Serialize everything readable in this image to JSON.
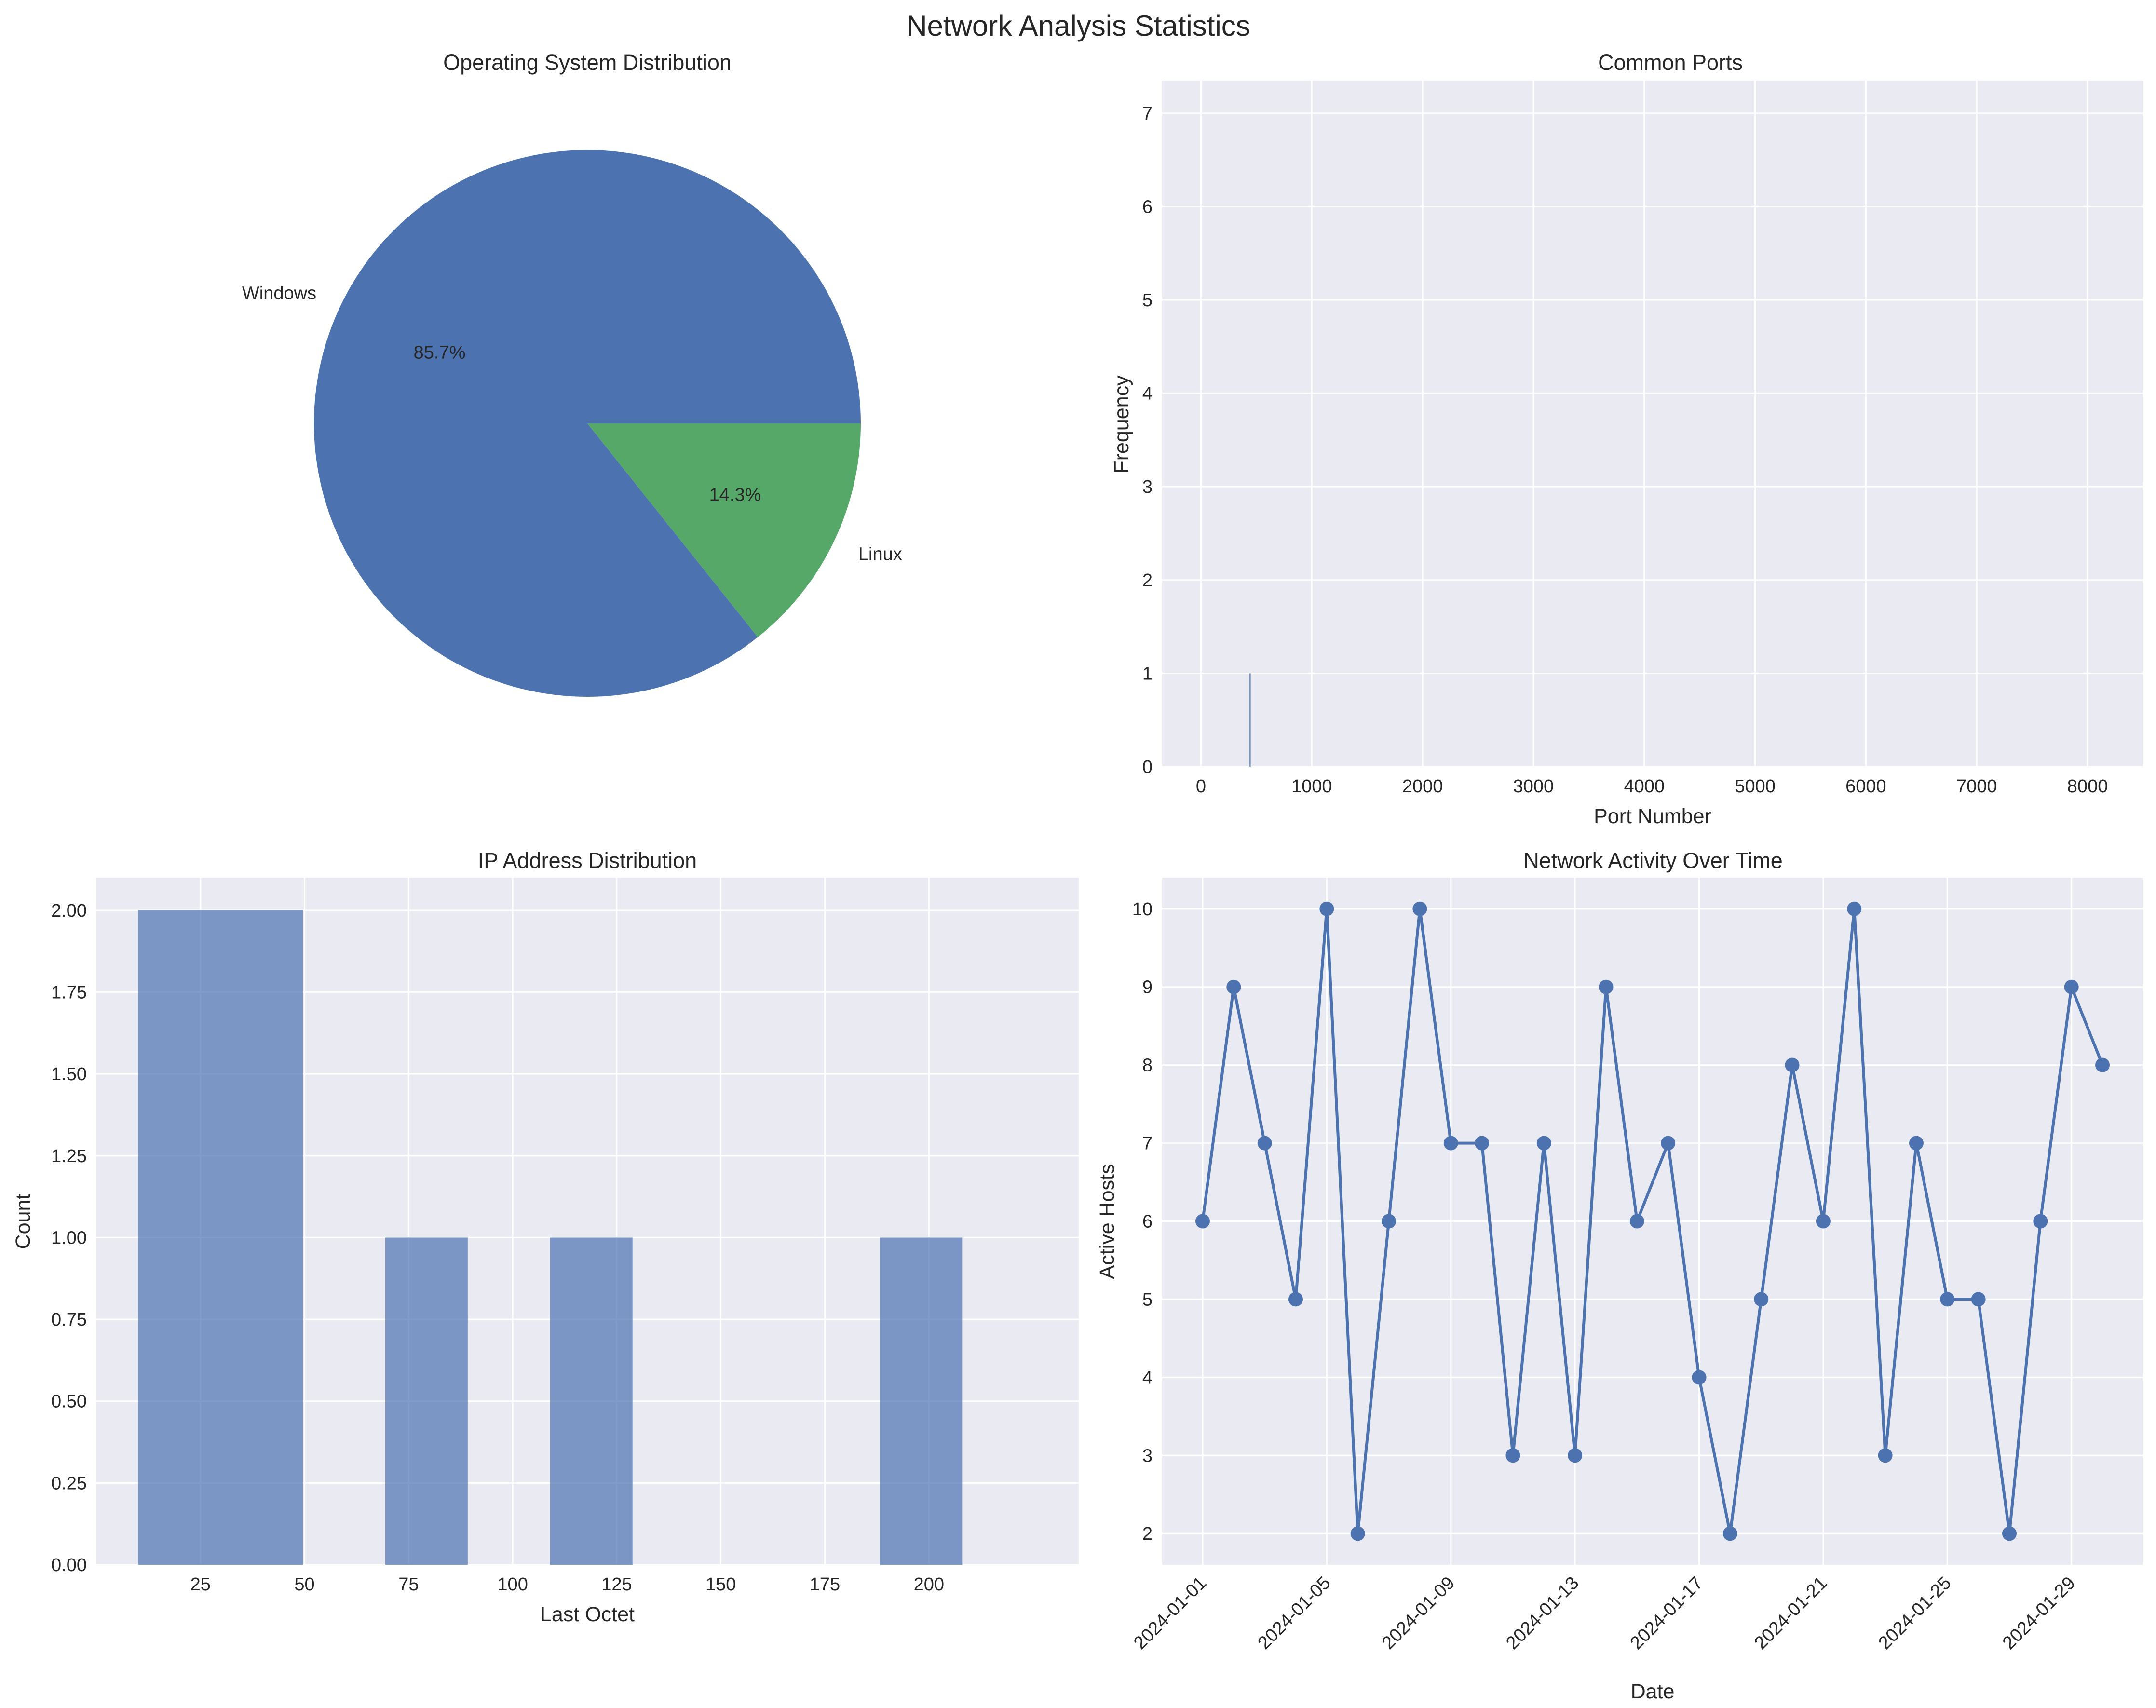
{
  "figure": {
    "title": "Network Analysis Statistics"
  },
  "colors": {
    "pie": [
      "#4C72B0",
      "#55A868"
    ],
    "bar": "#4C72B0",
    "line": "#4C72B0",
    "plot_bg": "#EAEAF2",
    "grid": "#FFFFFF"
  },
  "chart_data": [
    {
      "type": "pie",
      "title": "Operating System Distribution",
      "labels": [
        "Windows",
        "Linux"
      ],
      "values": [
        6,
        1
      ],
      "autopct": [
        "85.7%",
        "14.3%"
      ],
      "start_angle_deg": 0,
      "direction": "counterclockwise"
    },
    {
      "type": "bar",
      "title": "Common Ports",
      "xlabel": "Port Number",
      "ylabel": "Frequency",
      "xlim": [
        -350,
        8500
      ],
      "ylim": [
        0,
        7.35
      ],
      "xticks": [
        0,
        1000,
        2000,
        3000,
        4000,
        5000,
        6000,
        7000,
        8000
      ],
      "yticks": [
        0,
        1,
        2,
        3,
        4,
        5,
        6,
        7
      ],
      "bars": [
        {
          "x": 443,
          "value": 1
        }
      ]
    },
    {
      "type": "bar",
      "title": "IP Address Distribution",
      "xlabel": "Last Octet",
      "ylabel": "Count",
      "xlim": [
        0,
        236
      ],
      "ylim": [
        0,
        2.1
      ],
      "xticks": [
        25,
        50,
        75,
        100,
        125,
        150,
        175,
        200
      ],
      "yticks": [
        "0.00",
        "0.25",
        "0.50",
        "0.75",
        "1.00",
        "1.25",
        "1.50",
        "1.75",
        "2.00"
      ],
      "bins": [
        {
          "start": 10,
          "end": 49.6,
          "count": 2
        },
        {
          "start": 69.4,
          "end": 89.2,
          "count": 1
        },
        {
          "start": 109.0,
          "end": 128.8,
          "count": 1
        },
        {
          "start": 188.2,
          "end": 208.0,
          "count": 1
        }
      ]
    },
    {
      "type": "line",
      "title": "Network Activity Over Time",
      "xlabel": "Date",
      "ylabel": "Active Hosts",
      "ylim": [
        1.6,
        10.4
      ],
      "yticks": [
        2,
        3,
        4,
        5,
        6,
        7,
        8,
        9,
        10
      ],
      "xticks": [
        "2024-01-01",
        "2024-01-05",
        "2024-01-09",
        "2024-01-13",
        "2024-01-17",
        "2024-01-21",
        "2024-01-25",
        "2024-01-29"
      ],
      "x": [
        "2024-01-01",
        "2024-01-02",
        "2024-01-03",
        "2024-01-04",
        "2024-01-05",
        "2024-01-06",
        "2024-01-07",
        "2024-01-08",
        "2024-01-09",
        "2024-01-10",
        "2024-01-11",
        "2024-01-12",
        "2024-01-13",
        "2024-01-14",
        "2024-01-15",
        "2024-01-16",
        "2024-01-17",
        "2024-01-18",
        "2024-01-19",
        "2024-01-20",
        "2024-01-21",
        "2024-01-22",
        "2024-01-23",
        "2024-01-24",
        "2024-01-25",
        "2024-01-26",
        "2024-01-27",
        "2024-01-28",
        "2024-01-29",
        "2024-01-30"
      ],
      "values": [
        6,
        9,
        7,
        5,
        10,
        2,
        6,
        10,
        7,
        7,
        3,
        7,
        3,
        9,
        6,
        7,
        4,
        2,
        5,
        8,
        6,
        10,
        3,
        7,
        5,
        5,
        2,
        6,
        9,
        8
      ],
      "marker": "circle"
    }
  ]
}
